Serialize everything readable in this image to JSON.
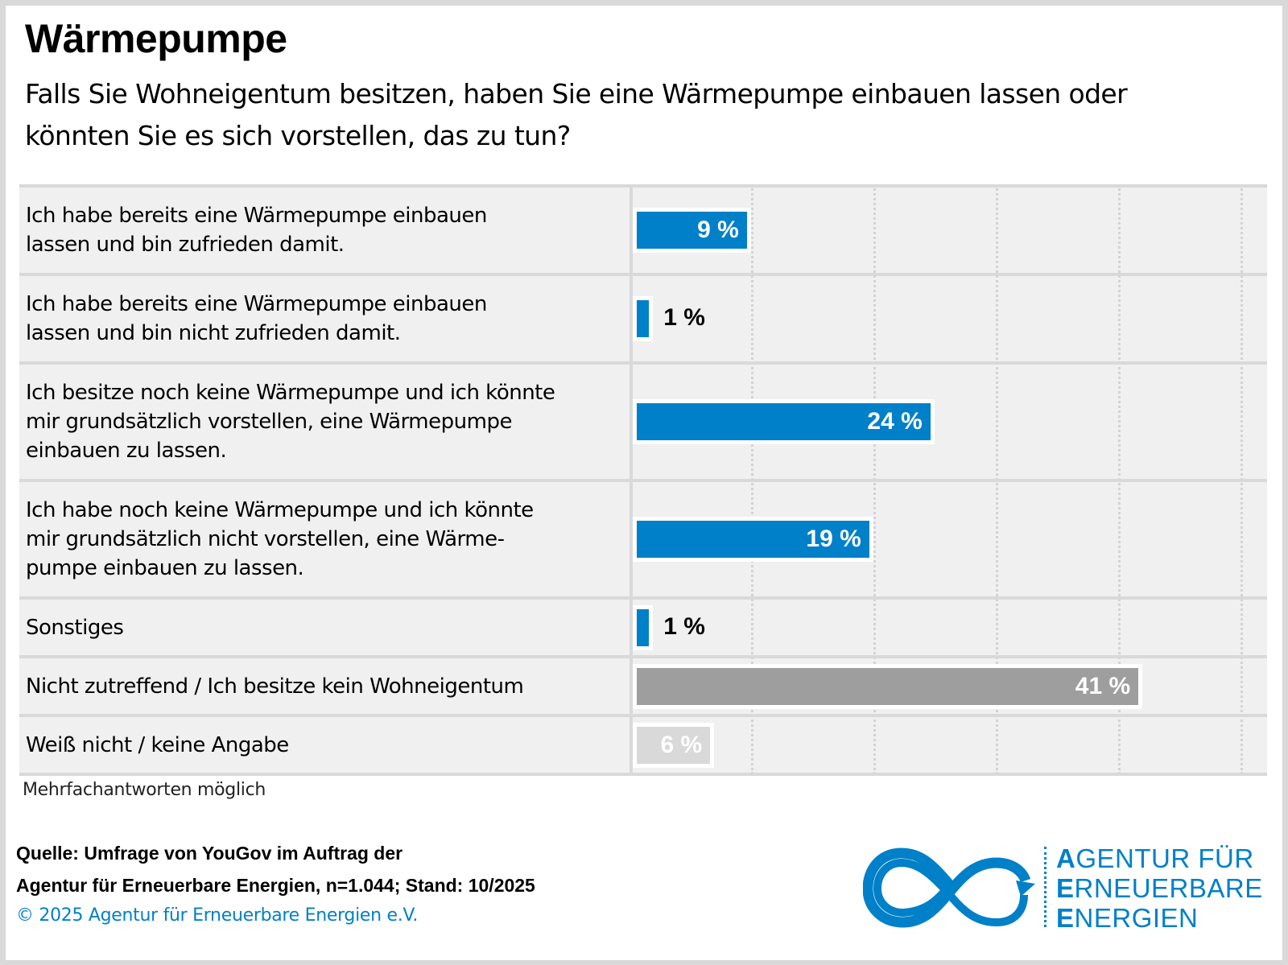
{
  "header": {
    "title": "Wärmepumpe",
    "subtitle": "Falls Sie Wohneigentum besitzen, haben Sie eine Wärmepumpe einbauen lassen oder könnten Sie es sich vorstellen, das zu tun?"
  },
  "colors": {
    "primary_bar": "#0080c8",
    "neutral_bar": "#9e9e9e",
    "unknown_bar": "#d9d9d9",
    "row_background": "#f0f0f0",
    "brand": "#0080c8"
  },
  "chart_data": {
    "type": "bar",
    "orientation": "horizontal",
    "title": "Wärmepumpe",
    "subtitle": "Falls Sie Wohneigentum besitzen, haben Sie eine Wärmepumpe einbauen lassen oder könnten Sie es sich vorstellen, das zu tun?",
    "xlabel": "",
    "ylabel": "",
    "unit": "%",
    "xlim": [
      0,
      50
    ],
    "grid": true,
    "categories": [
      "Ich habe bereits eine Wärmepumpe einbauen lassen und bin zufrieden damit.",
      "Ich habe bereits eine Wärmepumpe einbauen lassen und bin nicht zufrieden damit.",
      "Ich besitze noch keine Wärmepumpe und ich könnte mir grundsätzlich vorstellen, eine Wärmepumpe einbauen zu lassen.",
      "Ich habe noch keine Wärmepumpe und ich könnte mir grundsätzlich nicht vorstellen, eine Wärme-pumpe einbauen zu lassen.",
      "Sonstiges",
      "Nicht zutreffend / Ich besitze kein Wohneigentum",
      "Weiß nicht / keine Angabe"
    ],
    "values": [
      9,
      1,
      24,
      19,
      1,
      41,
      6
    ],
    "value_labels": [
      "9 %",
      "1 %",
      "24 %",
      "19 %",
      "1 %",
      "41 %",
      "6 %"
    ],
    "bar_colors": [
      "#0080c8",
      "#0080c8",
      "#0080c8",
      "#0080c8",
      "#0080c8",
      "#9e9e9e",
      "#d9d9d9"
    ],
    "label_lines": [
      [
        "Ich habe bereits eine Wärmepumpe einbauen",
        "lassen und bin zufrieden damit."
      ],
      [
        "Ich habe bereits eine Wärmepumpe einbauen",
        "lassen und bin nicht zufrieden damit."
      ],
      [
        "Ich besitze noch keine Wärmepumpe und ich könnte",
        "mir grundsätzlich vorstellen, eine Wärmepumpe",
        "einbauen zu lassen."
      ],
      [
        "Ich habe noch keine Wärmepumpe und ich könnte",
        "mir grundsätzlich nicht vorstellen, eine Wärme-",
        "pumpe einbauen zu lassen."
      ],
      [
        "Sonstiges"
      ],
      [
        "Nicht zutreffend / Ich besitze kein Wohneigentum"
      ],
      [
        "Weiß nicht / keine Angabe"
      ]
    ],
    "note": "Mehrfachantworten möglich"
  },
  "footer": {
    "source_line1": "Quelle: Umfrage von YouGov im Auftrag der",
    "source_line2": "Agentur für Erneuerbare Energien, n=1.044; Stand: 10/2025",
    "copyright": "© 2025 Agentur für Erneuerbare Energien e.V."
  },
  "logo": {
    "icon": "infinity-arrow-icon",
    "line1_initial": "A",
    "line1_rest": "GENTUR FÜR",
    "line2_initial": "E",
    "line2_rest": "RNEUERBARE",
    "line3_initial": "E",
    "line3_rest": "NERGIEN"
  }
}
